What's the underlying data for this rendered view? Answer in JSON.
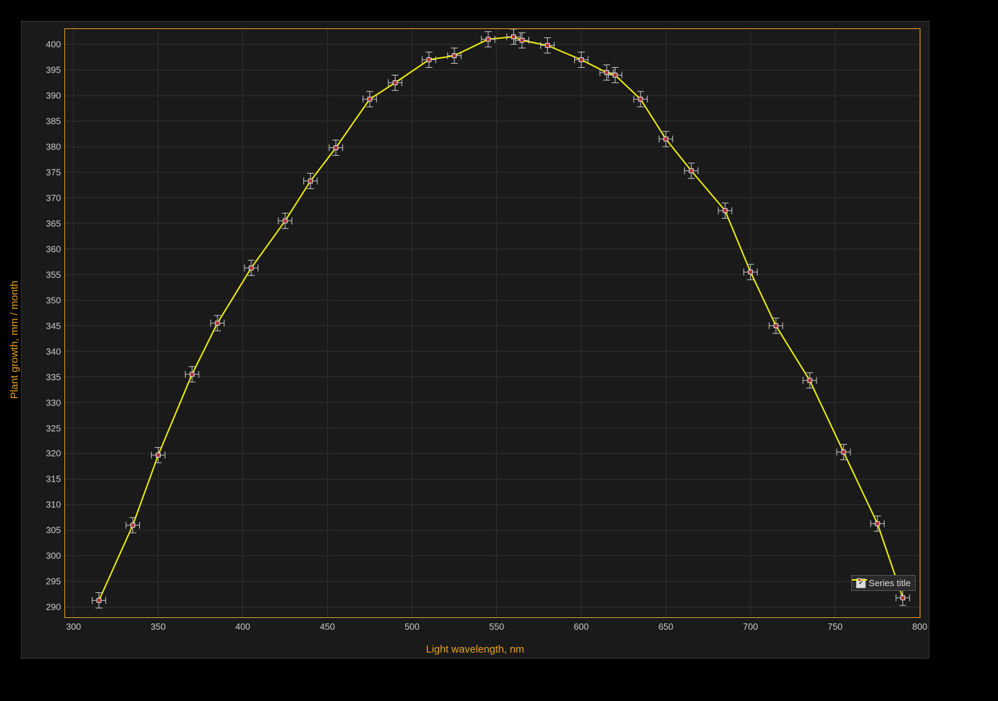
{
  "chart": {
    "type": "line-with-errorbars",
    "background_color": "#1a1a1a",
    "frame_border_color": "#333333",
    "axis_line_color": "#e6a323",
    "grid_color": "#303030",
    "tick_label_color": "#cccccc",
    "tick_fontsize": 13,
    "axis_label_color": "#e6a323",
    "axis_label_fontsize": 15,
    "xlabel": "Light wavelength, nm",
    "ylabel": "Plant growth, mm / month",
    "xlim": [
      295,
      800
    ],
    "ylim": [
      288,
      403
    ],
    "xtick_step": 50,
    "xtick_start": 300,
    "xtick_end": 800,
    "ytick_step": 5,
    "ytick_start": 290,
    "ytick_end": 400,
    "series": {
      "label": "Series title",
      "line_color": "#f0f000",
      "line_width": 2,
      "marker_fill": "#b03030",
      "marker_stroke": "#e0e0e0",
      "marker_size": 3,
      "errorbar_color": "#cccccc",
      "errorbar_cap": 5,
      "x_err": 4,
      "y_err": 1.5,
      "data": [
        {
          "x": 315,
          "y": 291.3
        },
        {
          "x": 335,
          "y": 306.0
        },
        {
          "x": 350,
          "y": 319.7
        },
        {
          "x": 370,
          "y": 335.5
        },
        {
          "x": 385,
          "y": 345.5
        },
        {
          "x": 405,
          "y": 356.3
        },
        {
          "x": 425,
          "y": 365.5
        },
        {
          "x": 440,
          "y": 373.3
        },
        {
          "x": 455,
          "y": 379.8
        },
        {
          "x": 475,
          "y": 389.3
        },
        {
          "x": 490,
          "y": 392.5
        },
        {
          "x": 510,
          "y": 397.0
        },
        {
          "x": 525,
          "y": 397.8
        },
        {
          "x": 545,
          "y": 401.0
        },
        {
          "x": 560,
          "y": 401.5
        },
        {
          "x": 565,
          "y": 400.8
        },
        {
          "x": 580,
          "y": 399.8
        },
        {
          "x": 600,
          "y": 397.0
        },
        {
          "x": 615,
          "y": 394.5
        },
        {
          "x": 620,
          "y": 394.0
        },
        {
          "x": 635,
          "y": 389.3
        },
        {
          "x": 650,
          "y": 381.5
        },
        {
          "x": 665,
          "y": 375.3
        },
        {
          "x": 685,
          "y": 367.5
        },
        {
          "x": 700,
          "y": 355.5
        },
        {
          "x": 715,
          "y": 345.0
        },
        {
          "x": 735,
          "y": 334.3
        },
        {
          "x": 755,
          "y": 320.3
        },
        {
          "x": 775,
          "y": 306.3
        },
        {
          "x": 790,
          "y": 291.8
        }
      ]
    },
    "legend": {
      "position": "bottom-right",
      "background": "#2a2a2a",
      "border_color": "#555555",
      "checkbox_checked": true,
      "label": "Series title"
    }
  }
}
